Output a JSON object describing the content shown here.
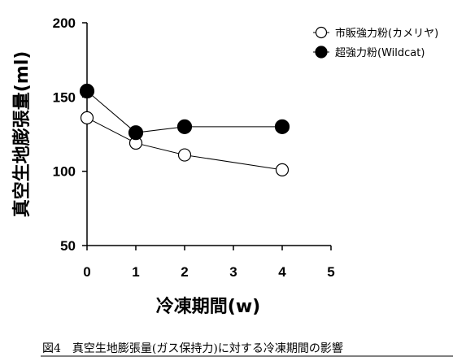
{
  "chart_data": {
    "type": "line",
    "xlabel": "冷凍期間(w)",
    "ylabel": "真空生地膨張量(ml)",
    "xlim": [
      0,
      5
    ],
    "ylim": [
      50,
      200
    ],
    "xticks": [
      "0",
      "1",
      "2",
      "3",
      "4",
      "5"
    ],
    "yticks": [
      "50",
      "100",
      "150",
      "200"
    ],
    "grid": false,
    "legend_position": "top-right",
    "series": [
      {
        "name": "市販強力粉(カメリヤ)",
        "marker": "open-circle",
        "color": "#000000",
        "x": [
          0,
          1,
          2,
          4
        ],
        "y": [
          136,
          119,
          111,
          101
        ]
      },
      {
        "name": "超強力粉(Wildcat)",
        "marker": "filled-circle",
        "color": "#000000",
        "x": [
          0,
          1,
          2,
          4
        ],
        "y": [
          154,
          126,
          130,
          130
        ]
      }
    ],
    "caption": "図4　真空生地膨張量(ガス保持力)に対する冷凍期間の影響"
  }
}
